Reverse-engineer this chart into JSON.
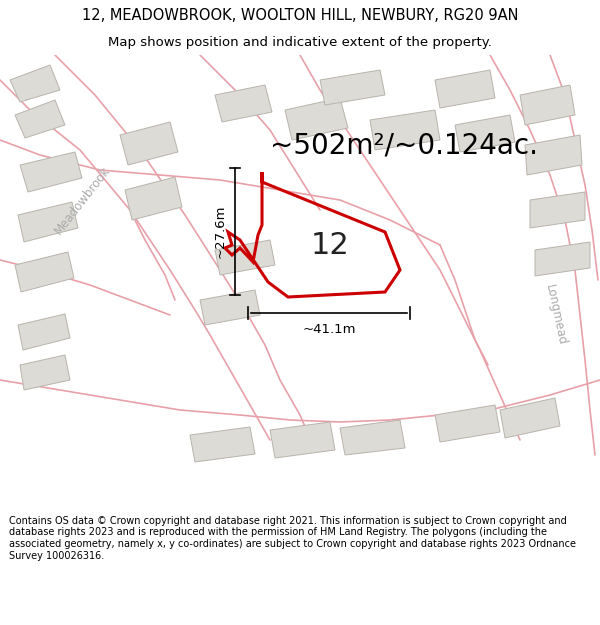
{
  "title_line1": "12, MEADOWBROOK, WOOLTON HILL, NEWBURY, RG20 9AN",
  "title_line2": "Map shows position and indicative extent of the property.",
  "area_text": "~502m²/~0.124ac.",
  "label_number": "12",
  "dim_width": "~41.1m",
  "dim_height": "~27.6m",
  "footer": "Contains OS data © Crown copyright and database right 2021. This information is subject to Crown copyright and database rights 2023 and is reproduced with the permission of HM Land Registry. The polygons (including the associated geometry, namely x, y co-ordinates) are subject to Crown copyright and database rights 2023 Ordnance Survey 100026316.",
  "bg_color": "#f5f3f0",
  "map_bg": "#f0eeeb",
  "road_color": "#fadadd",
  "road_outline": "#e8a0a8",
  "plot_color": "#cc0000",
  "building_fill": "#dddbd6",
  "building_outline": "#b8b4ac",
  "footer_fontsize": 7.0,
  "title1_fontsize": 10.5,
  "title2_fontsize": 9.5,
  "area_fontsize": 20,
  "label_fontsize": 22,
  "dim_fontsize": 9.5,
  "street_label_fontsize": 8.5,
  "street_label_color": "#aaaaaa"
}
